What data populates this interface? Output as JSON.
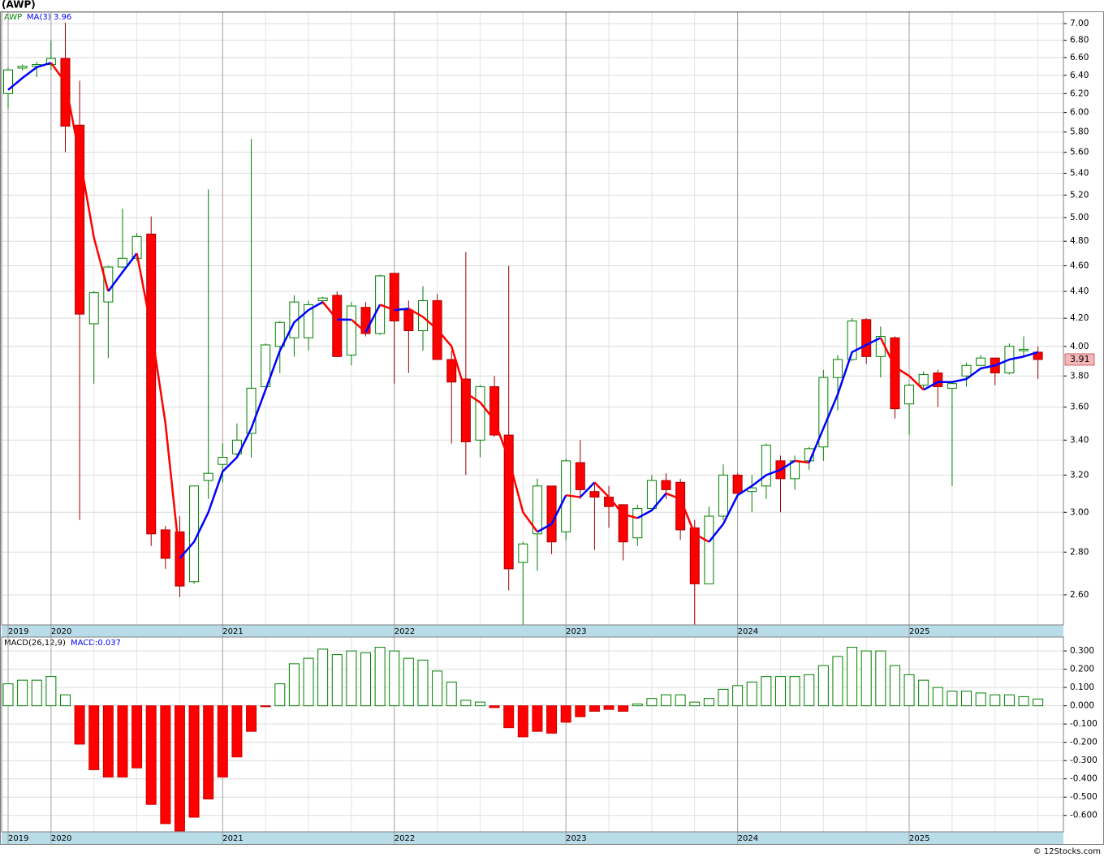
{
  "chart_data": [
    {
      "type": "candlestick",
      "title": "(AWP)",
      "categories": [
        "2019",
        null,
        null,
        "2020",
        null,
        null,
        null,
        null,
        null,
        null,
        null,
        null,
        null,
        null,
        null,
        "2021",
        null,
        null,
        null,
        null,
        null,
        null,
        null,
        null,
        null,
        null,
        null,
        "2022",
        null,
        null,
        null,
        null,
        null,
        null,
        null,
        null,
        null,
        null,
        null,
        "2023",
        null,
        null,
        null,
        null,
        null,
        null,
        null,
        null,
        null,
        null,
        null,
        "2024",
        null,
        null,
        null,
        null,
        null,
        null,
        null,
        null,
        null,
        null,
        null,
        "2025",
        null,
        null,
        null,
        null,
        null,
        null,
        null,
        null,
        null
      ],
      "series": [
        {
          "name": "AWP",
          "up_color": "#008000",
          "down_color": "#ff0000",
          "open": [
            6.2,
            6.48,
            6.5,
            6.52,
            6.59,
            5.87,
            4.16,
            4.32,
            4.59,
            4.66,
            4.86,
            2.91,
            2.9,
            2.66,
            3.17,
            3.26,
            3.32,
            3.44,
            3.73,
            4.0,
            4.06,
            4.06,
            4.33,
            4.37,
            3.94,
            4.28,
            4.09,
            4.54,
            4.26,
            4.11,
            4.33,
            3.91,
            3.78,
            3.4,
            3.73,
            3.43,
            2.75,
            2.89,
            3.14,
            2.9,
            3.27,
            3.11,
            3.08,
            3.04,
            2.87,
            3.02,
            3.17,
            3.16,
            2.92,
            2.65,
            2.98,
            3.2,
            3.11,
            3.14,
            3.28,
            3.18,
            3.28,
            3.36,
            3.79,
            3.91,
            4.19,
            3.93,
            4.06,
            3.62,
            3.74,
            3.82,
            3.72,
            3.8,
            3.87,
            3.92,
            3.82,
            3.97,
            3.96
          ],
          "high": [
            6.48,
            6.52,
            6.55,
            6.8,
            7.01,
            6.34,
            4.4,
            4.6,
            5.08,
            4.87,
            5.01,
            2.93,
            2.98,
            3.14,
            5.25,
            3.38,
            3.5,
            5.73,
            4.02,
            4.18,
            4.37,
            4.33,
            4.36,
            4.4,
            4.32,
            4.32,
            4.53,
            4.54,
            4.33,
            4.44,
            4.38,
            3.97,
            4.71,
            3.74,
            3.8,
            4.6,
            2.85,
            3.18,
            3.14,
            3.29,
            3.4,
            3.15,
            3.14,
            3.04,
            3.04,
            3.2,
            3.21,
            3.18,
            2.96,
            3.03,
            3.26,
            3.21,
            3.2,
            3.38,
            3.31,
            3.31,
            3.36,
            3.84,
            3.94,
            4.2,
            4.2,
            4.14,
            4.07,
            3.75,
            3.83,
            3.84,
            3.76,
            3.89,
            3.94,
            3.92,
            4.02,
            4.07,
            4.0
          ],
          "low": [
            6.04,
            6.45,
            6.38,
            6.46,
            5.6,
            2.96,
            3.75,
            3.92,
            4.58,
            4.64,
            2.83,
            2.72,
            2.59,
            2.65,
            3.07,
            3.16,
            3.3,
            3.3,
            3.74,
            3.82,
            3.93,
            3.97,
            4.3,
            3.93,
            3.87,
            4.07,
            4.08,
            3.75,
            3.82,
            3.97,
            3.91,
            3.38,
            3.2,
            3.3,
            3.42,
            2.62,
            2.47,
            2.71,
            2.79,
            2.86,
            3.07,
            2.81,
            2.92,
            2.76,
            2.83,
            3.01,
            3.07,
            2.86,
            2.47,
            2.65,
            2.96,
            3.1,
            3.0,
            3.07,
            3.0,
            3.12,
            3.23,
            3.28,
            3.58,
            3.9,
            3.88,
            3.79,
            3.53,
            3.43,
            3.72,
            3.6,
            3.14,
            3.73,
            3.87,
            3.74,
            3.81,
            3.93,
            3.78
          ],
          "close": [
            6.46,
            6.5,
            6.52,
            6.59,
            5.86,
            4.23,
            4.39,
            4.59,
            4.66,
            4.84,
            2.89,
            2.77,
            2.64,
            3.14,
            3.21,
            3.3,
            3.4,
            3.72,
            4.01,
            4.17,
            4.32,
            4.3,
            4.35,
            3.93,
            4.29,
            4.09,
            4.52,
            4.18,
            4.11,
            4.33,
            3.91,
            3.76,
            3.39,
            3.73,
            3.43,
            2.72,
            2.84,
            3.14,
            2.85,
            3.28,
            3.12,
            3.08,
            3.03,
            2.85,
            3.02,
            3.17,
            3.12,
            2.91,
            2.65,
            2.98,
            3.2,
            3.1,
            3.13,
            3.37,
            3.18,
            3.28,
            3.35,
            3.79,
            3.91,
            4.18,
            3.93,
            4.07,
            3.59,
            3.74,
            3.81,
            3.73,
            3.75,
            3.87,
            3.92,
            3.82,
            4.0,
            3.98,
            3.91
          ]
        }
      ],
      "ma": {
        "name": "MA(3)",
        "color": "#0000ff",
        "down_color": "#ff0000",
        "values": [
          6.24,
          6.37,
          6.49,
          6.54,
          6.32,
          5.56,
          4.83,
          4.4,
          4.55,
          4.7,
          4.13,
          3.5,
          2.77,
          2.85,
          3.0,
          3.22,
          3.3,
          3.47,
          3.71,
          3.97,
          4.17,
          4.26,
          4.32,
          4.19,
          4.19,
          4.1,
          4.3,
          4.26,
          4.27,
          4.21,
          4.12,
          4.0,
          3.69,
          3.63,
          3.52,
          3.29,
          3.0,
          2.9,
          2.94,
          3.09,
          3.08,
          3.16,
          3.08,
          2.99,
          2.97,
          3.01,
          3.1,
          3.07,
          2.89,
          2.85,
          2.94,
          3.09,
          3.14,
          3.2,
          3.23,
          3.28,
          3.27,
          3.47,
          3.68,
          3.96,
          4.01,
          4.06,
          3.86,
          3.8,
          3.71,
          3.76,
          3.76,
          3.78,
          3.85,
          3.87,
          3.91,
          3.93,
          3.96
        ]
      },
      "ylim": [
        2.468,
        7.14
      ],
      "log": true,
      "grid": true,
      "yticks": [
        {
          "value": 2.6,
          "label": "2.60"
        },
        {
          "value": 2.8,
          "label": "2.80"
        },
        {
          "value": 3.0,
          "label": "3.00"
        },
        {
          "value": 3.2,
          "label": "3.20"
        },
        {
          "value": 3.4,
          "label": "3.40"
        },
        {
          "value": 3.6,
          "label": "3.60"
        },
        {
          "value": 3.8,
          "label": "3.80"
        },
        {
          "value": 4.0,
          "label": "4.00"
        },
        {
          "value": 4.2,
          "label": "4.20"
        },
        {
          "value": 4.4,
          "label": "4.40"
        },
        {
          "value": 4.6,
          "label": "4.60"
        },
        {
          "value": 4.8,
          "label": "4.80"
        },
        {
          "value": 5.0,
          "label": "5.00"
        },
        {
          "value": 5.2,
          "label": "5.20"
        },
        {
          "value": 5.4,
          "label": "5.40"
        },
        {
          "value": 5.6,
          "label": "5.60"
        },
        {
          "value": 5.8,
          "label": "5.80"
        },
        {
          "value": 6.0,
          "label": "6.00"
        },
        {
          "value": 6.2,
          "label": "6.20"
        },
        {
          "value": 6.4,
          "label": "6.40"
        },
        {
          "value": 6.6,
          "label": "6.60"
        },
        {
          "value": 6.8,
          "label": "6.80"
        },
        {
          "value": 7.0,
          "label": "7.00"
        }
      ]
    },
    {
      "type": "bar",
      "title": "MACD(26,12,9)",
      "subtitle": "MACD:0.037",
      "categories": [
        "2019",
        null,
        null,
        "2020",
        null,
        null,
        null,
        null,
        null,
        null,
        null,
        null,
        null,
        null,
        null,
        "2021",
        null,
        null,
        null,
        null,
        null,
        null,
        null,
        null,
        null,
        null,
        null,
        "2022",
        null,
        null,
        null,
        null,
        null,
        null,
        null,
        null,
        null,
        null,
        null,
        "2023",
        null,
        null,
        null,
        null,
        null,
        null,
        null,
        null,
        null,
        null,
        null,
        "2024",
        null,
        null,
        null,
        null,
        null,
        null,
        null,
        null,
        null,
        null,
        null,
        "2025",
        null,
        null,
        null,
        null,
        null,
        null,
        null,
        null,
        null
      ],
      "values": [
        0.12,
        0.14,
        0.14,
        0.16,
        0.06,
        -0.21,
        -0.35,
        -0.39,
        -0.39,
        -0.34,
        -0.54,
        -0.645,
        -0.685,
        -0.61,
        -0.51,
        -0.39,
        -0.28,
        -0.14,
        -0.005,
        0.12,
        0.23,
        0.26,
        0.31,
        0.28,
        0.3,
        0.29,
        0.32,
        0.3,
        0.26,
        0.25,
        0.19,
        0.13,
        0.03,
        0.02,
        -0.01,
        -0.12,
        -0.17,
        -0.14,
        -0.15,
        -0.09,
        -0.06,
        -0.03,
        -0.02,
        -0.03,
        0.01,
        0.04,
        0.06,
        0.06,
        0.02,
        0.04,
        0.09,
        0.11,
        0.13,
        0.16,
        0.16,
        0.16,
        0.17,
        0.22,
        0.27,
        0.32,
        0.3,
        0.3,
        0.22,
        0.17,
        0.14,
        0.1,
        0.08,
        0.08,
        0.07,
        0.06,
        0.06,
        0.05,
        0.037
      ],
      "positive_color": "#008000",
      "negative_color": "#ff0000",
      "ylim": [
        -0.69,
        0.376
      ],
      "grid": true,
      "yticks": [
        {
          "value": 0.3,
          "label": "0.300"
        },
        {
          "value": 0.2,
          "label": "0.200"
        },
        {
          "value": 0.1,
          "label": "0.100"
        },
        {
          "value": 0,
          "label": "0.000"
        },
        {
          "value": -0.1,
          "label": "-0.100"
        },
        {
          "value": -0.2,
          "label": "-0.200"
        },
        {
          "value": -0.3,
          "label": "-0.300"
        },
        {
          "value": -0.4,
          "label": "-0.400"
        },
        {
          "value": -0.5,
          "label": "-0.500"
        },
        {
          "value": -0.6,
          "label": "-0.600"
        }
      ]
    }
  ],
  "footer": "© 12Stocks.com"
}
